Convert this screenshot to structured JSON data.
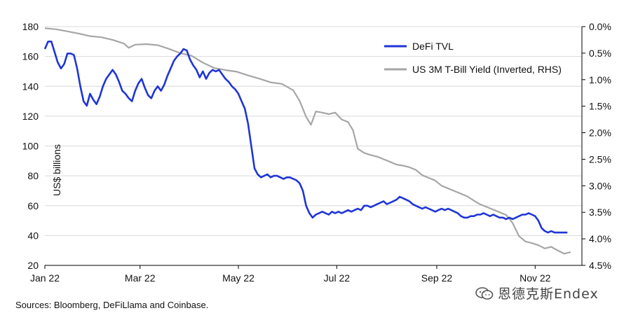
{
  "chart_data": {
    "type": "line",
    "title": "",
    "y_left": {
      "label": "US$ billions",
      "min": 20,
      "max": 180,
      "ticks": [
        20,
        40,
        60,
        80,
        100,
        120,
        140,
        160,
        180
      ]
    },
    "y_right": {
      "min": 0.0,
      "max": 4.5,
      "inverted": true,
      "tick_labels": [
        "0.0%",
        "0.5%",
        "1.0%",
        "1.5%",
        "2.0%",
        "2.5%",
        "3.0%",
        "3.5%",
        "4.0%",
        "4.5%"
      ],
      "tick_values": [
        0.0,
        0.5,
        1.0,
        1.5,
        2.0,
        2.5,
        3.0,
        3.5,
        4.0,
        4.5
      ]
    },
    "x_axis": {
      "min": "2022-01-01",
      "max": "2022-11-30",
      "tick_labels": [
        "Jan 22",
        "Mar 22",
        "May 22",
        "Jul 22",
        "Sep 22",
        "Nov 22"
      ],
      "tick_dates": [
        "2022-01-01",
        "2022-03-01",
        "2022-05-01",
        "2022-07-01",
        "2022-09-01",
        "2022-11-01"
      ]
    },
    "grid": true,
    "legend_position": "top-right",
    "series": [
      {
        "name": "DeFi TVL",
        "axis": "left",
        "color": "#1f35d6",
        "points": [
          [
            "2022-01-01",
            165
          ],
          [
            "2022-01-03",
            170
          ],
          [
            "2022-01-05",
            170
          ],
          [
            "2022-01-07",
            163
          ],
          [
            "2022-01-09",
            156
          ],
          [
            "2022-01-11",
            152
          ],
          [
            "2022-01-13",
            155
          ],
          [
            "2022-01-15",
            162
          ],
          [
            "2022-01-17",
            162
          ],
          [
            "2022-01-19",
            161
          ],
          [
            "2022-01-21",
            152
          ],
          [
            "2022-01-23",
            140
          ],
          [
            "2022-01-25",
            130
          ],
          [
            "2022-01-27",
            127
          ],
          [
            "2022-01-29",
            135
          ],
          [
            "2022-01-31",
            131
          ],
          [
            "2022-02-02",
            128
          ],
          [
            "2022-02-04",
            133
          ],
          [
            "2022-02-06",
            140
          ],
          [
            "2022-02-08",
            145
          ],
          [
            "2022-02-10",
            148
          ],
          [
            "2022-02-12",
            151
          ],
          [
            "2022-02-14",
            148
          ],
          [
            "2022-02-16",
            143
          ],
          [
            "2022-02-18",
            137
          ],
          [
            "2022-02-20",
            135
          ],
          [
            "2022-02-22",
            132
          ],
          [
            "2022-02-24",
            130
          ],
          [
            "2022-02-26",
            137
          ],
          [
            "2022-02-28",
            142
          ],
          [
            "2022-03-02",
            145
          ],
          [
            "2022-03-04",
            139
          ],
          [
            "2022-03-06",
            134
          ],
          [
            "2022-03-08",
            132
          ],
          [
            "2022-03-10",
            137
          ],
          [
            "2022-03-12",
            140
          ],
          [
            "2022-03-14",
            137
          ],
          [
            "2022-03-16",
            141
          ],
          [
            "2022-03-18",
            147
          ],
          [
            "2022-03-20",
            152
          ],
          [
            "2022-03-22",
            157
          ],
          [
            "2022-03-24",
            160
          ],
          [
            "2022-03-26",
            162
          ],
          [
            "2022-03-28",
            165
          ],
          [
            "2022-03-30",
            164
          ],
          [
            "2022-04-01",
            158
          ],
          [
            "2022-04-03",
            154
          ],
          [
            "2022-04-05",
            151
          ],
          [
            "2022-04-07",
            146
          ],
          [
            "2022-04-09",
            150
          ],
          [
            "2022-04-11",
            145
          ],
          [
            "2022-04-13",
            149
          ],
          [
            "2022-04-15",
            151
          ],
          [
            "2022-04-17",
            150
          ],
          [
            "2022-04-19",
            151
          ],
          [
            "2022-04-21",
            148
          ],
          [
            "2022-04-23",
            145
          ],
          [
            "2022-04-25",
            143
          ],
          [
            "2022-04-27",
            140
          ],
          [
            "2022-04-29",
            138
          ],
          [
            "2022-05-01",
            135
          ],
          [
            "2022-05-03",
            130
          ],
          [
            "2022-05-05",
            125
          ],
          [
            "2022-05-07",
            115
          ],
          [
            "2022-05-09",
            100
          ],
          [
            "2022-05-11",
            85
          ],
          [
            "2022-05-13",
            81
          ],
          [
            "2022-05-15",
            79
          ],
          [
            "2022-05-17",
            80
          ],
          [
            "2022-05-19",
            81
          ],
          [
            "2022-05-21",
            79
          ],
          [
            "2022-05-23",
            80
          ],
          [
            "2022-05-25",
            80
          ],
          [
            "2022-05-27",
            79
          ],
          [
            "2022-05-29",
            78
          ],
          [
            "2022-05-31",
            79
          ],
          [
            "2022-06-02",
            79
          ],
          [
            "2022-06-04",
            78
          ],
          [
            "2022-06-06",
            77
          ],
          [
            "2022-06-08",
            75
          ],
          [
            "2022-06-10",
            70
          ],
          [
            "2022-06-12",
            60
          ],
          [
            "2022-06-14",
            55
          ],
          [
            "2022-06-16",
            52
          ],
          [
            "2022-06-18",
            54
          ],
          [
            "2022-06-20",
            55
          ],
          [
            "2022-06-22",
            56
          ],
          [
            "2022-06-24",
            55
          ],
          [
            "2022-06-26",
            54
          ],
          [
            "2022-06-28",
            56
          ],
          [
            "2022-06-30",
            55
          ],
          [
            "2022-07-02",
            56
          ],
          [
            "2022-07-04",
            55
          ],
          [
            "2022-07-06",
            56
          ],
          [
            "2022-07-08",
            57
          ],
          [
            "2022-07-10",
            56
          ],
          [
            "2022-07-12",
            57
          ],
          [
            "2022-07-14",
            58
          ],
          [
            "2022-07-16",
            57
          ],
          [
            "2022-07-18",
            60
          ],
          [
            "2022-07-20",
            60
          ],
          [
            "2022-07-22",
            59
          ],
          [
            "2022-07-24",
            60
          ],
          [
            "2022-07-26",
            61
          ],
          [
            "2022-07-28",
            62
          ],
          [
            "2022-07-30",
            63
          ],
          [
            "2022-08-01",
            61
          ],
          [
            "2022-08-03",
            62
          ],
          [
            "2022-08-05",
            63
          ],
          [
            "2022-08-07",
            64
          ],
          [
            "2022-08-09",
            66
          ],
          [
            "2022-08-11",
            65
          ],
          [
            "2022-08-13",
            64
          ],
          [
            "2022-08-15",
            63
          ],
          [
            "2022-08-17",
            61
          ],
          [
            "2022-08-19",
            60
          ],
          [
            "2022-08-21",
            59
          ],
          [
            "2022-08-23",
            58
          ],
          [
            "2022-08-25",
            59
          ],
          [
            "2022-08-27",
            58
          ],
          [
            "2022-08-29",
            57
          ],
          [
            "2022-08-31",
            56
          ],
          [
            "2022-09-02",
            57
          ],
          [
            "2022-09-04",
            58
          ],
          [
            "2022-09-06",
            57
          ],
          [
            "2022-09-08",
            58
          ],
          [
            "2022-09-10",
            57
          ],
          [
            "2022-09-12",
            56
          ],
          [
            "2022-09-14",
            55
          ],
          [
            "2022-09-16",
            53
          ],
          [
            "2022-09-18",
            52
          ],
          [
            "2022-09-20",
            52
          ],
          [
            "2022-09-22",
            53
          ],
          [
            "2022-09-24",
            53
          ],
          [
            "2022-09-26",
            54
          ],
          [
            "2022-09-28",
            54
          ],
          [
            "2022-09-30",
            55
          ],
          [
            "2022-10-02",
            54
          ],
          [
            "2022-10-04",
            53
          ],
          [
            "2022-10-06",
            54
          ],
          [
            "2022-10-08",
            53
          ],
          [
            "2022-10-10",
            52
          ],
          [
            "2022-10-12",
            52
          ],
          [
            "2022-10-14",
            51
          ],
          [
            "2022-10-16",
            52
          ],
          [
            "2022-10-18",
            51
          ],
          [
            "2022-10-20",
            52
          ],
          [
            "2022-10-22",
            53
          ],
          [
            "2022-10-24",
            54
          ],
          [
            "2022-10-26",
            54
          ],
          [
            "2022-10-28",
            55
          ],
          [
            "2022-10-30",
            54
          ],
          [
            "2022-11-01",
            53
          ],
          [
            "2022-11-03",
            50
          ],
          [
            "2022-11-05",
            45
          ],
          [
            "2022-11-07",
            43
          ],
          [
            "2022-11-09",
            42
          ],
          [
            "2022-11-11",
            43
          ],
          [
            "2022-11-13",
            42
          ],
          [
            "2022-11-15",
            42
          ],
          [
            "2022-11-17",
            42
          ],
          [
            "2022-11-19",
            42
          ],
          [
            "2022-11-21",
            42
          ]
        ]
      },
      {
        "name": "US 3M T-Bill Yield (Inverted, RHS)",
        "axis": "right",
        "color": "#a6a6a6",
        "points": [
          [
            "2022-01-01",
            0.03
          ],
          [
            "2022-01-08",
            0.05
          ],
          [
            "2022-01-15",
            0.09
          ],
          [
            "2022-01-22",
            0.13
          ],
          [
            "2022-01-29",
            0.18
          ],
          [
            "2022-02-05",
            0.2
          ],
          [
            "2022-02-12",
            0.25
          ],
          [
            "2022-02-19",
            0.32
          ],
          [
            "2022-02-22",
            0.4
          ],
          [
            "2022-02-26",
            0.34
          ],
          [
            "2022-03-05",
            0.33
          ],
          [
            "2022-03-12",
            0.35
          ],
          [
            "2022-03-19",
            0.42
          ],
          [
            "2022-03-26",
            0.5
          ],
          [
            "2022-04-02",
            0.55
          ],
          [
            "2022-04-09",
            0.68
          ],
          [
            "2022-04-16",
            0.78
          ],
          [
            "2022-04-23",
            0.82
          ],
          [
            "2022-04-30",
            0.85
          ],
          [
            "2022-05-07",
            0.92
          ],
          [
            "2022-05-14",
            0.98
          ],
          [
            "2022-05-21",
            1.05
          ],
          [
            "2022-05-28",
            1.08
          ],
          [
            "2022-06-04",
            1.2
          ],
          [
            "2022-06-08",
            1.4
          ],
          [
            "2022-06-12",
            1.7
          ],
          [
            "2022-06-15",
            1.85
          ],
          [
            "2022-06-18",
            1.6
          ],
          [
            "2022-06-22",
            1.62
          ],
          [
            "2022-06-26",
            1.65
          ],
          [
            "2022-06-30",
            1.62
          ],
          [
            "2022-07-04",
            1.75
          ],
          [
            "2022-07-08",
            1.8
          ],
          [
            "2022-07-11",
            1.95
          ],
          [
            "2022-07-14",
            2.3
          ],
          [
            "2022-07-18",
            2.38
          ],
          [
            "2022-07-22",
            2.42
          ],
          [
            "2022-07-26",
            2.45
          ],
          [
            "2022-07-30",
            2.5
          ],
          [
            "2022-08-03",
            2.55
          ],
          [
            "2022-08-07",
            2.6
          ],
          [
            "2022-08-11",
            2.62
          ],
          [
            "2022-08-15",
            2.65
          ],
          [
            "2022-08-19",
            2.7
          ],
          [
            "2022-08-23",
            2.8
          ],
          [
            "2022-08-27",
            2.85
          ],
          [
            "2022-08-31",
            2.9
          ],
          [
            "2022-09-04",
            3.0
          ],
          [
            "2022-09-08",
            3.05
          ],
          [
            "2022-09-12",
            3.1
          ],
          [
            "2022-09-16",
            3.15
          ],
          [
            "2022-09-20",
            3.2
          ],
          [
            "2022-09-24",
            3.28
          ],
          [
            "2022-09-28",
            3.35
          ],
          [
            "2022-10-02",
            3.4
          ],
          [
            "2022-10-06",
            3.45
          ],
          [
            "2022-10-10",
            3.5
          ],
          [
            "2022-10-14",
            3.55
          ],
          [
            "2022-10-18",
            3.7
          ],
          [
            "2022-10-22",
            3.95
          ],
          [
            "2022-10-26",
            4.05
          ],
          [
            "2022-10-30",
            4.08
          ],
          [
            "2022-11-03",
            4.12
          ],
          [
            "2022-11-07",
            4.18
          ],
          [
            "2022-11-11",
            4.15
          ],
          [
            "2022-11-15",
            4.22
          ],
          [
            "2022-11-19",
            4.28
          ],
          [
            "2022-11-23",
            4.25
          ]
        ]
      }
    ]
  },
  "source_note": "Sources: Bloomberg, DeFiLlama and Coinbase.",
  "watermark": "恩德克斯Endex"
}
